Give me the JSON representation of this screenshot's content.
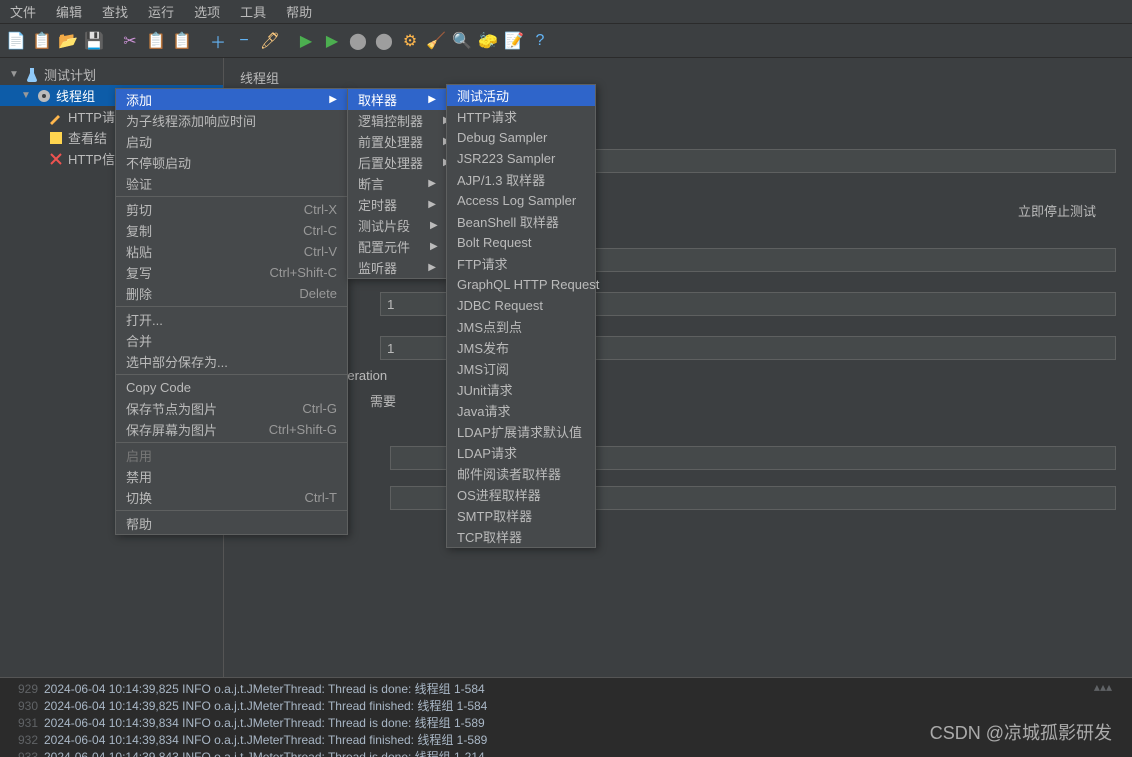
{
  "menubar": [
    "文件",
    "编辑",
    "查找",
    "运行",
    "选项",
    "工具",
    "帮助"
  ],
  "toolbar_icons": [
    {
      "name": "new-icon",
      "color": "#e8e8e8",
      "glyph": "📄"
    },
    {
      "name": "templates-icon",
      "color": "#4caf50",
      "glyph": "📋"
    },
    {
      "name": "open-icon",
      "color": "#e6b422",
      "glyph": "📂"
    },
    {
      "name": "save-icon",
      "color": "#90caf9",
      "glyph": "💾"
    },
    {
      "name": "sep"
    },
    {
      "name": "cut-icon",
      "color": "#ce93d8",
      "glyph": "✂"
    },
    {
      "name": "copy-icon",
      "color": "#bbb",
      "glyph": "📋"
    },
    {
      "name": "paste-icon",
      "color": "#bbb",
      "glyph": "📋"
    },
    {
      "name": "sep"
    },
    {
      "name": "plus-icon",
      "color": "#64b5f6",
      "glyph": "＋"
    },
    {
      "name": "minus-icon",
      "color": "#64b5f6",
      "glyph": "−"
    },
    {
      "name": "wand-icon",
      "color": "#ffcc80",
      "glyph": "🖊"
    },
    {
      "name": "sep"
    },
    {
      "name": "run-icon",
      "color": "#4caf50",
      "glyph": "▶"
    },
    {
      "name": "run-no-icon",
      "color": "#4caf50",
      "glyph": "▶"
    },
    {
      "name": "stop-icon",
      "color": "#9e9e9e",
      "glyph": "⬤"
    },
    {
      "name": "shutdown-icon",
      "color": "#9e9e9e",
      "glyph": "⬤"
    },
    {
      "name": "clear-icon",
      "color": "#ffb74d",
      "glyph": "⚙"
    },
    {
      "name": "clear-all-icon",
      "color": "#ffcc80",
      "glyph": "🧹"
    },
    {
      "name": "search-icon",
      "color": "#9e9e9e",
      "glyph": "🔍"
    },
    {
      "name": "reset-icon",
      "color": "#ffd54f",
      "glyph": "🧽"
    },
    {
      "name": "func-icon",
      "color": "#90caf9",
      "glyph": "📝"
    },
    {
      "name": "help-icon",
      "color": "#64b5f6",
      "glyph": "?"
    }
  ],
  "tree": {
    "root": "测试计划",
    "thread_group": "线程组",
    "children": [
      "HTTP请",
      "查看结",
      "HTTP信"
    ]
  },
  "panel": {
    "title": "线程组",
    "stop_text": "立即停止测试",
    "iteration": "n iteration",
    "need": "需要",
    "num1": "1",
    "num2": "1"
  },
  "context_menu": [
    {
      "label": "添加",
      "arrow": true,
      "hover": true
    },
    {
      "label": "为子线程添加响应时间"
    },
    {
      "label": "启动"
    },
    {
      "label": "不停顿启动"
    },
    {
      "label": "验证"
    },
    {
      "sep": true
    },
    {
      "label": "剪切",
      "shortcut": "Ctrl-X"
    },
    {
      "label": "复制",
      "shortcut": "Ctrl-C"
    },
    {
      "label": "粘贴",
      "shortcut": "Ctrl-V"
    },
    {
      "label": "复写",
      "shortcut": "Ctrl+Shift-C"
    },
    {
      "label": "删除",
      "shortcut": "Delete"
    },
    {
      "sep": true
    },
    {
      "label": "打开..."
    },
    {
      "label": "合并"
    },
    {
      "label": "选中部分保存为..."
    },
    {
      "sep": true
    },
    {
      "label": "Copy Code"
    },
    {
      "label": "保存节点为图片",
      "shortcut": "Ctrl-G"
    },
    {
      "label": "保存屏幕为图片",
      "shortcut": "Ctrl+Shift-G"
    },
    {
      "sep": true
    },
    {
      "label": "启用",
      "disabled": true
    },
    {
      "label": "禁用"
    },
    {
      "label": "切换",
      "shortcut": "Ctrl-T"
    },
    {
      "sep": true
    },
    {
      "label": "帮助"
    }
  ],
  "submenu": [
    {
      "label": "取样器",
      "hover": true,
      "arrow": true
    },
    {
      "label": "逻辑控制器",
      "arrow": true
    },
    {
      "label": "前置处理器",
      "arrow": true
    },
    {
      "label": "后置处理器",
      "arrow": true
    },
    {
      "label": "断言",
      "arrow": true
    },
    {
      "label": "定时器",
      "arrow": true
    },
    {
      "label": "测试片段",
      "arrow": true
    },
    {
      "label": "配置元件",
      "arrow": true
    },
    {
      "label": "监听器",
      "arrow": true
    }
  ],
  "samplers": [
    "测试活动",
    "HTTP请求",
    "Debug Sampler",
    "JSR223 Sampler",
    "AJP/1.3 取样器",
    "Access Log Sampler",
    "BeanShell 取样器",
    "Bolt Request",
    "FTP请求",
    "GraphQL HTTP Request",
    "JDBC Request",
    "JMS点到点",
    "JMS发布",
    "JMS订阅",
    "JUnit请求",
    "Java请求",
    "LDAP扩展请求默认值",
    "LDAP请求",
    "邮件阅读者取样器",
    "OS进程取样器",
    "SMTP取样器",
    "TCP取样器"
  ],
  "log_lines": [
    {
      "n": "929",
      "t": "2024-06-04 10:14:39,825 INFO o.a.j.t.JMeterThread: Thread is done: 线程组 1-584"
    },
    {
      "n": "930",
      "t": "2024-06-04 10:14:39,825 INFO o.a.j.t.JMeterThread: Thread finished: 线程组 1-584"
    },
    {
      "n": "931",
      "t": "2024-06-04 10:14:39,834 INFO o.a.j.t.JMeterThread: Thread is done: 线程组 1-589"
    },
    {
      "n": "932",
      "t": "2024-06-04 10:14:39,834 INFO o.a.j.t.JMeterThread: Thread finished: 线程组 1-589"
    },
    {
      "n": "933",
      "t": "2024-06-04 10:14:39,843 INFO o.a.j.t.JMeterThread: Thread is done: 线程组 1-214"
    }
  ],
  "watermark": "CSDN @凉城孤影研发"
}
